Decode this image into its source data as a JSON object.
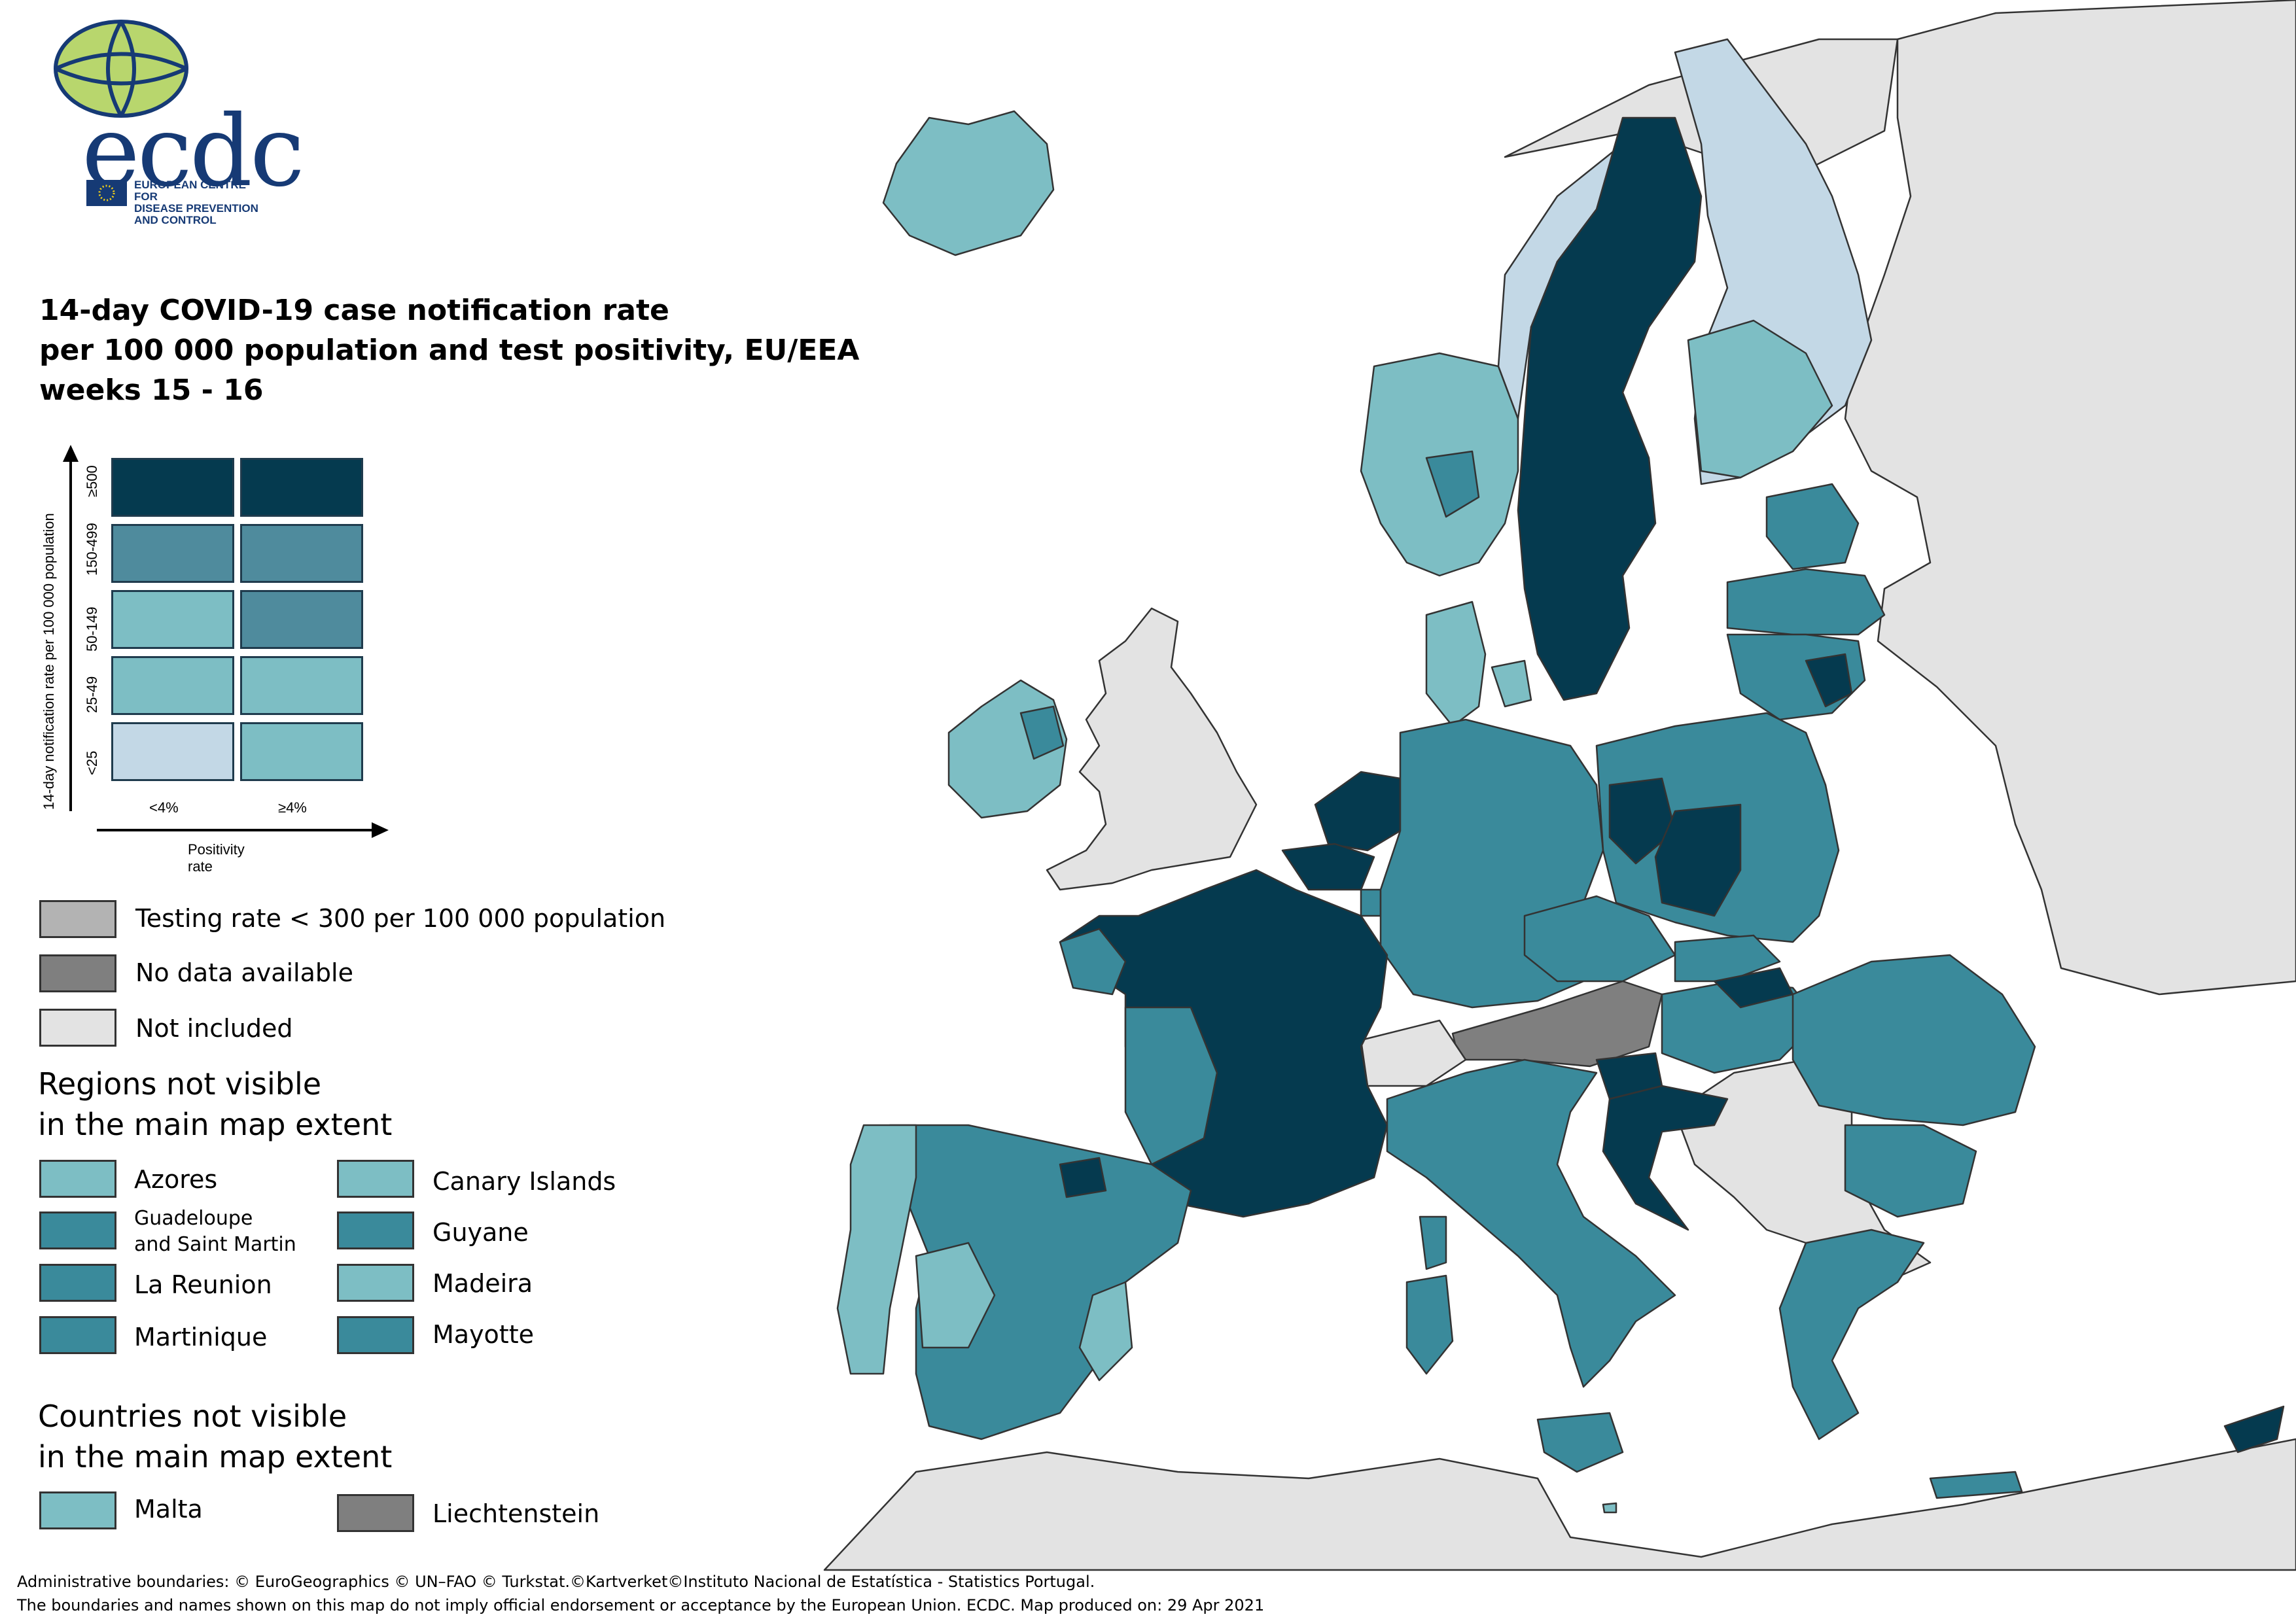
{
  "logo": {
    "wordmark": "ecdc",
    "sub_line1": "EUROPEAN CENTRE FOR",
    "sub_line2": "DISEASE PREVENTION",
    "sub_line3": "AND CONTROL"
  },
  "title": {
    "line1": "14-day COVID-19 case notification rate",
    "line2": "per 100 000 population and test positivity, EU/EEA",
    "line3": "weeks 15 - 16"
  },
  "matrix": {
    "y_axis_label": "14-day notification rate per 100 000 population",
    "x_axis_label": "Positivity rate",
    "rows": [
      "≥500",
      "150-499",
      "50-149",
      "25-49",
      "<25"
    ],
    "cols": [
      "<4%",
      "≥4%"
    ],
    "cell_colors": [
      [
        "#053a4f",
        "#053a4f"
      ],
      [
        "#4f8b9d",
        "#4f8b9d"
      ],
      [
        "#7dbec4",
        "#4f8b9d"
      ],
      [
        "#7dbec4",
        "#7dbec4"
      ],
      [
        "#c3d8e6",
        "#7dbec4"
      ]
    ]
  },
  "status_legend": [
    {
      "label": "Testing rate < 300 per 100 000 population",
      "color": "#b3b3b3"
    },
    {
      "label": "No data available",
      "color": "#7f7f7f"
    },
    {
      "label": "Not included",
      "color": "#e3e3e3"
    }
  ],
  "regions_section": {
    "heading_line1": "Regions not visible",
    "heading_line2": "in the main map extent",
    "left": [
      {
        "label": "Azores",
        "color": "#7dbec4"
      },
      {
        "label_line1": "Guadeloupe",
        "label_line2": "and Saint Martin",
        "color": "#3a8a9b"
      },
      {
        "label": "La Reunion",
        "color": "#3a8a9b"
      },
      {
        "label": "Martinique",
        "color": "#3a8a9b"
      }
    ],
    "right": [
      {
        "label": "Canary Islands",
        "color": "#7dbec4"
      },
      {
        "label": "Guyane",
        "color": "#3a8a9b"
      },
      {
        "label": "Madeira",
        "color": "#7dbec4"
      },
      {
        "label": "Mayotte",
        "color": "#3a8a9b"
      }
    ]
  },
  "countries_section": {
    "heading_line1": "Countries not visible",
    "heading_line2": "in the main map extent",
    "left": {
      "label": "Malta",
      "color": "#7dbec4"
    },
    "right": {
      "label": "Liechtenstein",
      "color": "#7f7f7f"
    }
  },
  "map_colors": {
    "dark": "#053a4f",
    "mid": "#3a8a9b",
    "steel": "#4f8b9d",
    "light": "#7dbec4",
    "pale": "#c3d8e6",
    "grey_testing": "#b3b3b3",
    "grey_nodata": "#7f7f7f",
    "not_included": "#e3e3e3",
    "sea": "#ffffff",
    "border": "#333333"
  },
  "footer": {
    "line1": "Administrative boundaries: © EuroGeographics © UN–FAO © Turkstat.©Kartverket©Instituto Nacional de Estatística - Statistics Portugal.",
    "line2": "The boundaries and names shown on this map do not imply official endorsement or acceptance by the European Union. ECDC. Map produced on: 29 Apr 2021"
  }
}
